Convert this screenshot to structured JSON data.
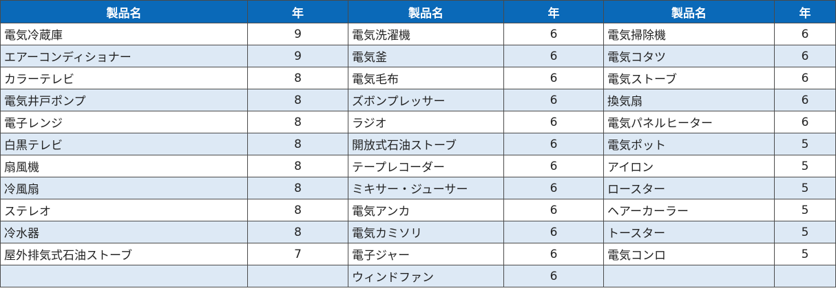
{
  "headers": [
    "製品名",
    "年",
    "製品名",
    "年",
    "製品名",
    "年"
  ],
  "rows": [
    [
      "電気冷蔵庫",
      "9",
      "電気洗濯機",
      "6",
      "電気掃除機",
      "6"
    ],
    [
      "エアーコンディショナー",
      "9",
      "電気釜",
      "6",
      "電気コタツ",
      "6"
    ],
    [
      "カラーテレビ",
      "8",
      "電気毛布",
      "6",
      "電気ストーブ",
      "6"
    ],
    [
      "電気井戸ポンプ",
      "8",
      "ズボンプレッサー",
      "6",
      "換気扇",
      "6"
    ],
    [
      "電子レンジ",
      "8",
      "ラジオ",
      "6",
      "電気パネルヒーター",
      "6"
    ],
    [
      "白黒テレビ",
      "8",
      "開放式石油ストーブ",
      "6",
      "電気ポット",
      "5"
    ],
    [
      "扇風機",
      "8",
      "テープレコーダー",
      "6",
      "アイロン",
      "5"
    ],
    [
      "冷風扇",
      "8",
      "ミキサー・ジューサー",
      "6",
      "ロースター",
      "5"
    ],
    [
      "ステレオ",
      "8",
      "電気アンカ",
      "6",
      "ヘアーカーラー",
      "5"
    ],
    [
      "冷水器",
      "8",
      "電気カミソリ",
      "6",
      "トースター",
      "5"
    ],
    [
      "屋外排気式石油ストーブ",
      "7",
      "電子ジャー",
      "6",
      "電気コンロ",
      "5"
    ],
    [
      "",
      "",
      "ウィンドファン",
      "6",
      "",
      ""
    ]
  ]
}
